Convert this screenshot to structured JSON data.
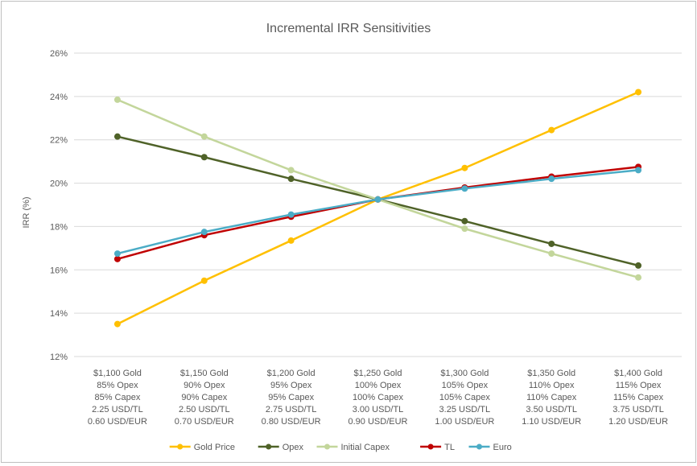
{
  "chart_data": {
    "type": "line",
    "title": "Incremental IRR Sensitivities",
    "xlabel": "",
    "ylabel": "IRR (%)",
    "ylim": [
      12,
      26
    ],
    "y_ticks": [
      "12%",
      "14%",
      "16%",
      "18%",
      "20%",
      "22%",
      "24%",
      "26%"
    ],
    "y_tick_values": [
      12,
      14,
      16,
      18,
      20,
      22,
      24,
      26
    ],
    "grid": true,
    "legend_position": "bottom",
    "categories": [
      [
        "$1,100 Gold",
        "85% Opex",
        "85% Capex",
        "2.25 USD/TL",
        "0.60 USD/EUR"
      ],
      [
        "$1,150 Gold",
        "90% Opex",
        "90% Capex",
        "2.50 USD/TL",
        "0.70 USD/EUR"
      ],
      [
        "$1,200 Gold",
        "95% Opex",
        "95% Capex",
        "2.75 USD/TL",
        "0.80 USD/EUR"
      ],
      [
        "$1,250 Gold",
        "100% Opex",
        "100% Capex",
        "3.00 USD/TL",
        "0.90 USD/EUR"
      ],
      [
        "$1,300 Gold",
        "105% Opex",
        "105% Capex",
        "3.25 USD/TL",
        "1.00 USD/EUR"
      ],
      [
        "$1,350 Gold",
        "110% Opex",
        "110% Capex",
        "3.50 USD/TL",
        "1.10 USD/EUR"
      ],
      [
        "$1,400 Gold",
        "115% Opex",
        "115% Capex",
        "3.75 USD/TL",
        "1.20 USD/EUR"
      ]
    ],
    "series": [
      {
        "name": "Gold Price",
        "color": "#FFC000",
        "values": [
          13.5,
          15.5,
          17.35,
          19.25,
          20.7,
          22.45,
          24.2
        ]
      },
      {
        "name": "Opex",
        "color": "#4F6228",
        "values": [
          22.15,
          21.2,
          20.2,
          19.25,
          18.25,
          17.2,
          16.2
        ]
      },
      {
        "name": "Initial Capex",
        "color": "#C3D69B",
        "values": [
          23.85,
          22.15,
          20.6,
          19.25,
          17.9,
          16.75,
          15.65
        ]
      },
      {
        "name": "TL",
        "color": "#C00000",
        "values": [
          16.5,
          17.6,
          18.45,
          19.25,
          19.8,
          20.3,
          20.75
        ]
      },
      {
        "name": "Euro",
        "color": "#4BACC6",
        "values": [
          16.75,
          17.75,
          18.55,
          19.25,
          19.75,
          20.2,
          20.6
        ]
      }
    ]
  }
}
